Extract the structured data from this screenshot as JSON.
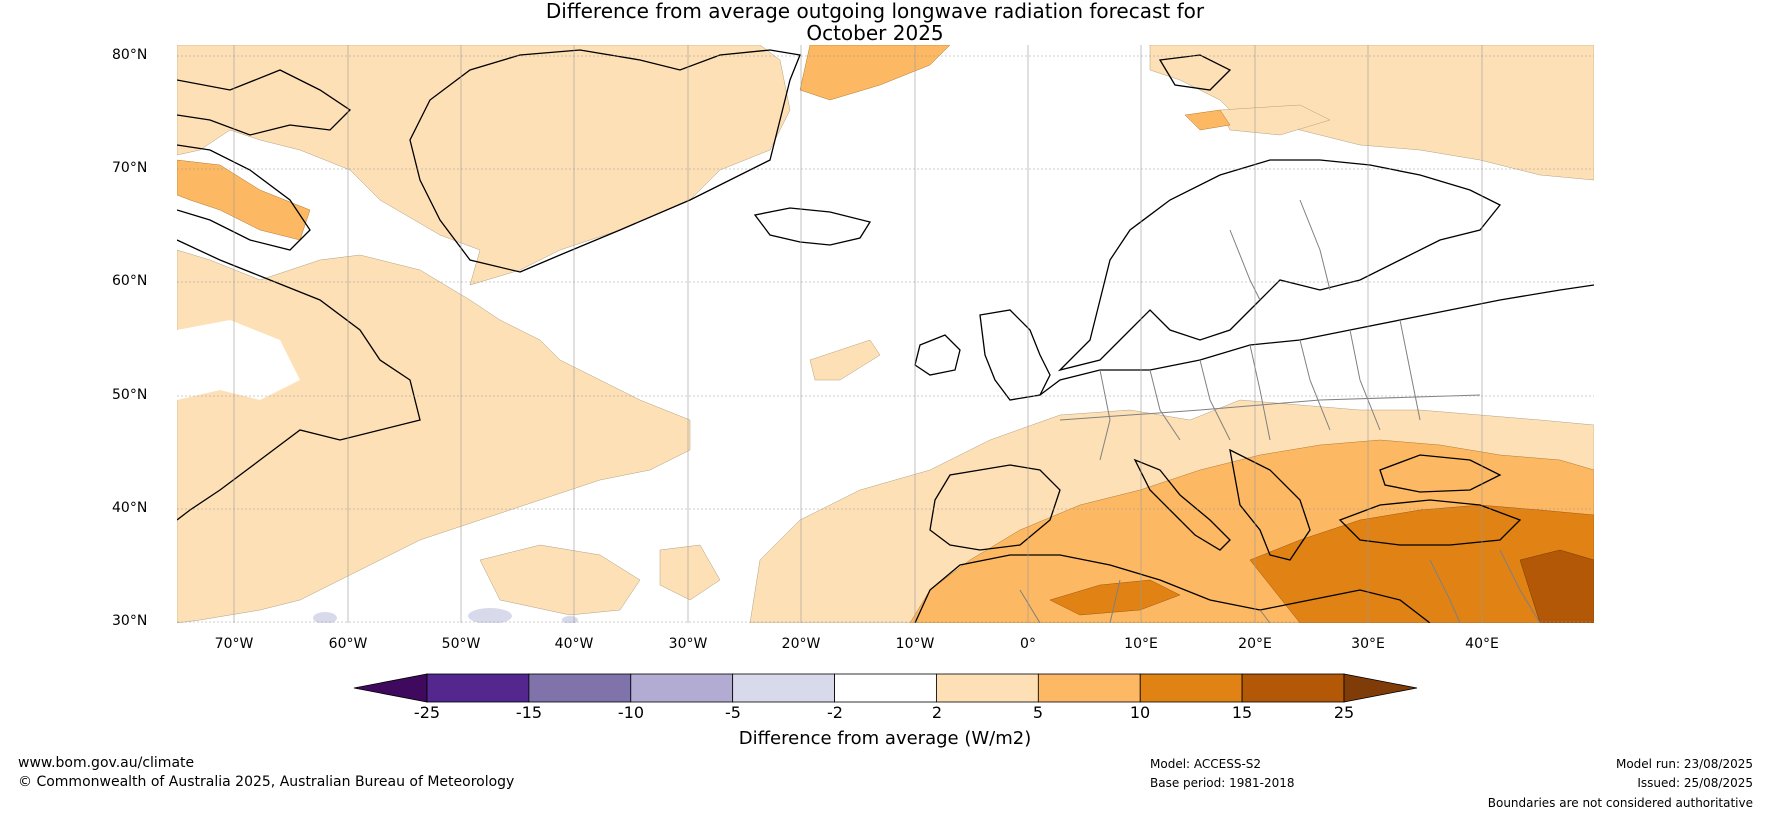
{
  "title": {
    "line1": "Difference from average outgoing longwave radiation forecast for",
    "line2": "October 2025"
  },
  "map": {
    "region": "North Atlantic and Europe",
    "lat_labels": [
      "80°N",
      "70°N",
      "60°N",
      "50°N",
      "40°N",
      "30°N"
    ],
    "lon_labels": [
      "70°W",
      "60°W",
      "50°W",
      "40°W",
      "30°W",
      "20°W",
      "10°W",
      "0°",
      "10°E",
      "20°E",
      "30°E",
      "40°E"
    ],
    "land_color": "#ffffff",
    "coast_color": "#000000",
    "border_color": "#808080",
    "grid": true
  },
  "colorbar": {
    "ticks": [
      "-25",
      "-15",
      "-10",
      "-5",
      "-2",
      "2",
      "5",
      "10",
      "15",
      "25"
    ],
    "colors": [
      "#3f0a5e",
      "#54278f",
      "#8073ac",
      "#b2abd2",
      "#d8daeb",
      "#ffffff",
      "#fee0b6",
      "#fdb863",
      "#e08214",
      "#b35806",
      "#7f3b08"
    ],
    "label": "Difference from average (W/m2)"
  },
  "footer": {
    "url": "www.bom.gov.au/climate",
    "copyright": "© Commonwealth of Australia 2025, Australian Bureau of Meteorology",
    "model": "Model: ACCESS-S2",
    "base_period": "Base period: 1981-2018",
    "model_run": "Model run: 23/08/2025",
    "issued": "Issued: 25/08/2025",
    "disclaimer": "Boundaries are not considered authoritative"
  }
}
